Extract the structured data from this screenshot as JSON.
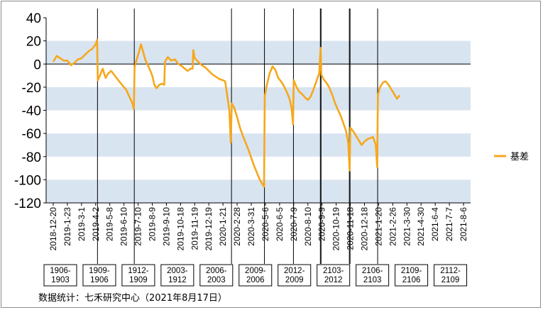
{
  "chart_data": {
    "type": "line",
    "title": "",
    "xlabel": "",
    "ylabel": "",
    "ylim": [
      -120,
      40
    ],
    "yticks": [
      "40",
      "20",
      "0",
      "-20",
      "-40",
      "-60",
      "-80",
      "-100",
      "-120"
    ],
    "ytick_values": [
      40,
      20,
      0,
      -20,
      -40,
      -60,
      -80,
      -100,
      -120
    ],
    "shaded_bands": [
      [
        0,
        20
      ],
      [
        -40,
        -20
      ],
      [
        -80,
        -60
      ],
      [
        -120,
        -100
      ]
    ],
    "grid": false,
    "legend_position": "right",
    "x_tick_labels": [
      "2018-12-20",
      "2019-1-23",
      "2019-3-1",
      "2019-4-2",
      "2019-5-8",
      "2019-6-10",
      "2019-7-10",
      "2019-8-9",
      "2019-9-10",
      "2019-10-18",
      "2019-11-19",
      "2019-12-19",
      "2020-1-21",
      "2020-2-28",
      "2020-3-31",
      "2020-5-6",
      "2020-6-5",
      "2020-7-9",
      "2020-8-10",
      "2020-9-9",
      "2020-10-19",
      "2020-11-18",
      "2020-12-18",
      "2021-1-20",
      "2021-2-26",
      "2021-3-30",
      "2021-4-30",
      "2021-6-4",
      "2021-7-7",
      "2021-8-6"
    ],
    "contracts": [
      "1906-\n1903",
      "1909-\n1906",
      "1912-\n1909",
      "2003-\n1912",
      "2006-\n2003",
      "2009-\n2006",
      "2012-\n2009",
      "2103-\n2012",
      "2106-\n2103",
      "2109-\n2106",
      "2112-\n2109"
    ],
    "series": [
      {
        "name": "基差",
        "color": "#f5a81c",
        "points": [
          [
            0,
            2
          ],
          [
            0.25,
            7
          ],
          [
            0.5,
            5
          ],
          [
            0.75,
            3
          ],
          [
            1,
            3
          ],
          [
            1.25,
            -1
          ],
          [
            1.5,
            1
          ],
          [
            1.75,
            4
          ],
          [
            2,
            5
          ],
          [
            2.25,
            8
          ],
          [
            2.5,
            11
          ],
          [
            2.75,
            13
          ],
          [
            3,
            17
          ],
          [
            3.1,
            21
          ],
          [
            3.15,
            -14
          ],
          [
            3.3,
            -10
          ],
          [
            3.5,
            -4
          ],
          [
            3.7,
            -12
          ],
          [
            3.9,
            -8
          ],
          [
            4.1,
            -6
          ],
          [
            4.35,
            -10
          ],
          [
            4.6,
            -14
          ],
          [
            4.8,
            -17
          ],
          [
            5,
            -20
          ],
          [
            5.15,
            -22
          ],
          [
            5.3,
            -26
          ],
          [
            5.45,
            -30
          ],
          [
            5.6,
            -34
          ],
          [
            5.7,
            -39
          ],
          [
            5.75,
            -3
          ],
          [
            5.9,
            4
          ],
          [
            6.05,
            10
          ],
          [
            6.2,
            17
          ],
          [
            6.35,
            11
          ],
          [
            6.5,
            4
          ],
          [
            6.65,
            0
          ],
          [
            6.8,
            -4
          ],
          [
            7,
            -10
          ],
          [
            7.15,
            -18
          ],
          [
            7.3,
            -21
          ],
          [
            7.5,
            -18
          ],
          [
            7.7,
            -17
          ],
          [
            7.85,
            -18
          ],
          [
            7.9,
            2
          ],
          [
            8.1,
            6
          ],
          [
            8.35,
            3
          ],
          [
            8.6,
            4
          ],
          [
            8.85,
            0
          ],
          [
            9.1,
            -2
          ],
          [
            9.3,
            -4
          ],
          [
            9.5,
            -6
          ],
          [
            9.7,
            -4
          ],
          [
            9.85,
            -4
          ],
          [
            9.9,
            12
          ],
          [
            10,
            5
          ],
          [
            10.25,
            2
          ],
          [
            10.5,
            -1
          ],
          [
            10.75,
            -3
          ],
          [
            11,
            -6
          ],
          [
            11.25,
            -9
          ],
          [
            11.5,
            -11
          ],
          [
            11.75,
            -13
          ],
          [
            12,
            -14
          ],
          [
            12.15,
            -15
          ],
          [
            12.3,
            -27
          ],
          [
            12.45,
            -40
          ],
          [
            12.55,
            -68
          ],
          [
            12.62,
            -34
          ],
          [
            12.8,
            -38
          ],
          [
            13,
            -46
          ],
          [
            13.2,
            -55
          ],
          [
            13.4,
            -62
          ],
          [
            13.6,
            -68
          ],
          [
            13.8,
            -74
          ],
          [
            14,
            -81
          ],
          [
            14.2,
            -88
          ],
          [
            14.4,
            -94
          ],
          [
            14.6,
            -100
          ],
          [
            14.8,
            -104
          ],
          [
            14.9,
            -106
          ],
          [
            14.95,
            -28
          ],
          [
            15.1,
            -18
          ],
          [
            15.3,
            -8
          ],
          [
            15.5,
            -2
          ],
          [
            15.7,
            -5
          ],
          [
            15.9,
            -12
          ],
          [
            16.1,
            -15
          ],
          [
            16.3,
            -19
          ],
          [
            16.5,
            -24
          ],
          [
            16.7,
            -30
          ],
          [
            16.85,
            -38
          ],
          [
            16.95,
            -52
          ],
          [
            17,
            -14
          ],
          [
            17.2,
            -20
          ],
          [
            17.4,
            -24
          ],
          [
            17.6,
            -26
          ],
          [
            17.8,
            -29
          ],
          [
            18,
            -31
          ],
          [
            18.2,
            -28
          ],
          [
            18.4,
            -22
          ],
          [
            18.6,
            -15
          ],
          [
            18.8,
            -8
          ],
          [
            18.9,
            14
          ],
          [
            18.95,
            -9
          ],
          [
            19.1,
            -13
          ],
          [
            19.3,
            -16
          ],
          [
            19.5,
            -20
          ],
          [
            19.7,
            -26
          ],
          [
            19.9,
            -33
          ],
          [
            20.1,
            -39
          ],
          [
            20.3,
            -44
          ],
          [
            20.5,
            -51
          ],
          [
            20.7,
            -58
          ],
          [
            20.85,
            -68
          ],
          [
            20.95,
            -92
          ],
          [
            21,
            -55
          ],
          [
            21.2,
            -58
          ],
          [
            21.4,
            -62
          ],
          [
            21.6,
            -66
          ],
          [
            21.8,
            -70
          ],
          [
            22,
            -67
          ],
          [
            22.2,
            -65
          ],
          [
            22.4,
            -64
          ],
          [
            22.6,
            -63
          ],
          [
            22.8,
            -70
          ],
          [
            22.9,
            -89
          ],
          [
            22.95,
            -27
          ],
          [
            23.1,
            -20
          ],
          [
            23.3,
            -16
          ],
          [
            23.5,
            -15
          ],
          [
            23.7,
            -18
          ],
          [
            23.9,
            -22
          ],
          [
            24.1,
            -26
          ],
          [
            24.3,
            -30
          ],
          [
            24.5,
            -27
          ]
        ]
      }
    ]
  },
  "legend": {
    "label": "基差"
  },
  "source_text": "数据统计：七禾研究中心（2021年8月17日）"
}
